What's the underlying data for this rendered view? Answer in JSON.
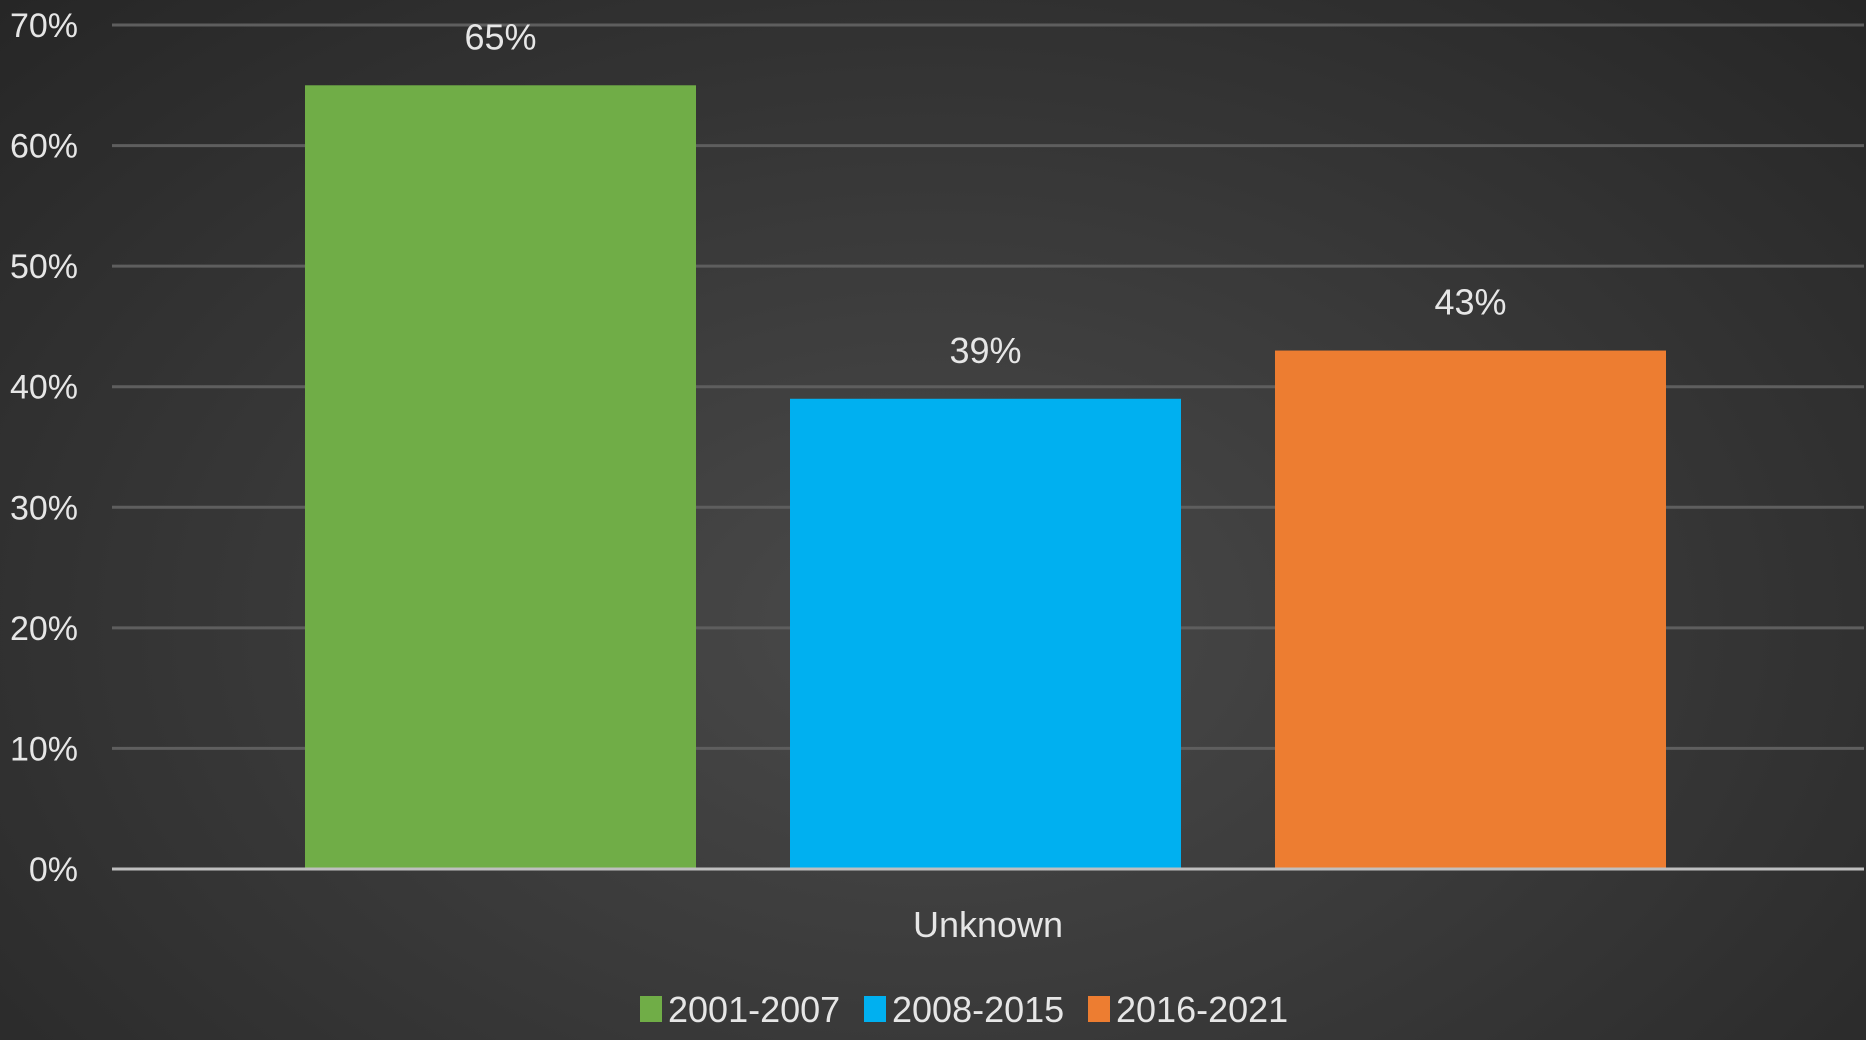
{
  "chart_data": {
    "type": "bar",
    "categories": [
      "Unknown"
    ],
    "series": [
      {
        "name": "2001-2007",
        "values": [
          65
        ],
        "color": "#70ad47"
      },
      {
        "name": "2008-2015",
        "values": [
          39
        ],
        "color": "#00b0f0"
      },
      {
        "name": "2016-2021",
        "values": [
          43
        ],
        "color": "#ed7d31"
      }
    ],
    "data_labels": [
      "65%",
      "39%",
      "43%"
    ],
    "y_ticks": [
      "0%",
      "10%",
      "20%",
      "30%",
      "40%",
      "50%",
      "60%",
      "70%"
    ],
    "ylim": [
      0,
      70
    ],
    "grid": true,
    "legend_position": "bottom",
    "title": "",
    "xlabel": "",
    "ylabel": ""
  },
  "colors": {
    "gridline": "#5e5e5e",
    "axis": "#bfbfbf",
    "text": "#e6e6e6"
  }
}
